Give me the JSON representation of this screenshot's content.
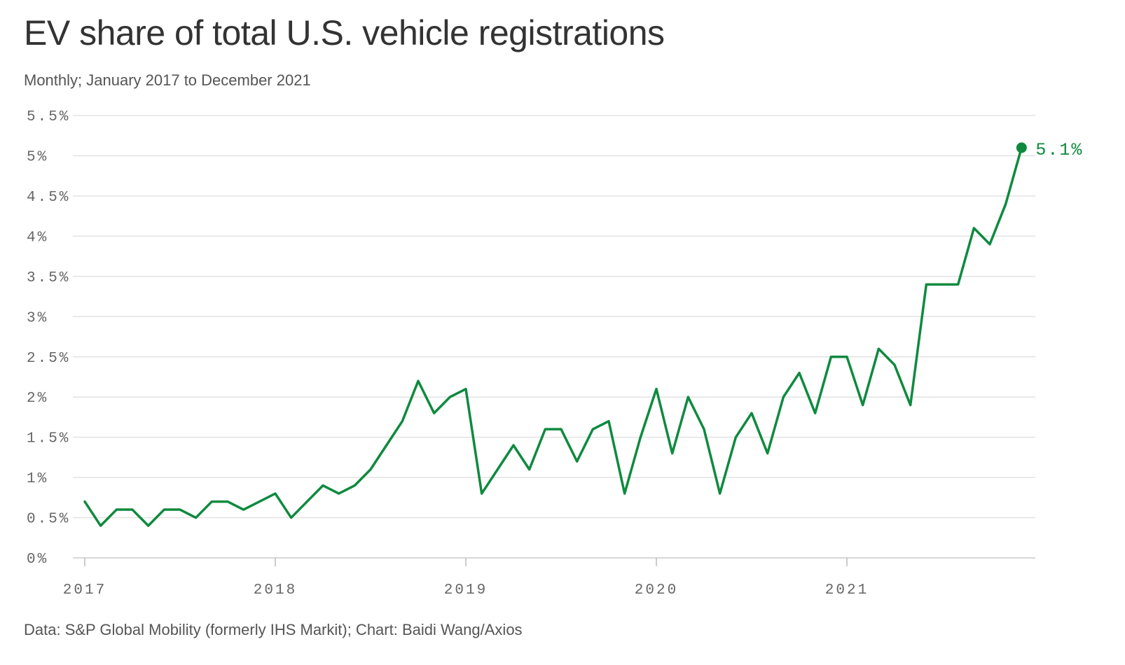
{
  "chart_data": {
    "type": "line",
    "title": "EV share of total U.S. vehicle registrations",
    "subtitle": "Monthly; January 2017 to December 2021",
    "source": "Data: S&P Global Mobility (formerly IHS Markit); Chart: Baidi Wang/Axios",
    "xlabel": "",
    "ylabel": "",
    "ylim": [
      0,
      5.5
    ],
    "y_ticks": [
      0,
      0.5,
      1,
      1.5,
      2,
      2.5,
      3,
      3.5,
      4,
      4.5,
      5,
      5.5
    ],
    "y_tick_labels": [
      "0%",
      "0.5%",
      "1%",
      "1.5%",
      "2%",
      "2.5%",
      "3%",
      "3.5%",
      "4%",
      "4.5%",
      "5%",
      "5.5%"
    ],
    "x_ticks": [
      "2017-01",
      "2018-01",
      "2019-01",
      "2020-01",
      "2021-01"
    ],
    "x_tick_labels": [
      "2017",
      "2018",
      "2019",
      "2020",
      "2021"
    ],
    "grid": true,
    "line_color": "#0e8a3e",
    "end_label": "5.1%",
    "series": [
      {
        "x": [
          "2017-01",
          "2017-02",
          "2017-03",
          "2017-04",
          "2017-05",
          "2017-06",
          "2017-07",
          "2017-08",
          "2017-09",
          "2017-10",
          "2017-11",
          "2017-12",
          "2018-01",
          "2018-02",
          "2018-03",
          "2018-04",
          "2018-05",
          "2018-06",
          "2018-07",
          "2018-08",
          "2018-09",
          "2018-10",
          "2018-11",
          "2018-12",
          "2019-01",
          "2019-02",
          "2019-03",
          "2019-04",
          "2019-05",
          "2019-06",
          "2019-07",
          "2019-08",
          "2019-09",
          "2019-10",
          "2019-11",
          "2019-12",
          "2020-01",
          "2020-02",
          "2020-03",
          "2020-04",
          "2020-05",
          "2020-06",
          "2020-07",
          "2020-08",
          "2020-09",
          "2020-10",
          "2020-11",
          "2020-12",
          "2021-01",
          "2021-02",
          "2021-03",
          "2021-04",
          "2021-05",
          "2021-06",
          "2021-07",
          "2021-08",
          "2021-09",
          "2021-10",
          "2021-11",
          "2021-12"
        ],
        "values": [
          0.7,
          0.4,
          0.6,
          0.6,
          0.4,
          0.6,
          0.6,
          0.5,
          0.7,
          0.7,
          0.6,
          0.7,
          0.8,
          0.5,
          0.7,
          0.9,
          0.8,
          0.9,
          1.1,
          1.4,
          1.7,
          2.2,
          1.8,
          2.0,
          2.1,
          0.8,
          1.1,
          1.4,
          1.1,
          1.6,
          1.6,
          1.2,
          1.6,
          1.7,
          0.8,
          1.5,
          2.1,
          1.3,
          2.0,
          1.6,
          0.8,
          1.5,
          1.8,
          1.3,
          2.0,
          2.3,
          1.8,
          2.5,
          2.5,
          1.9,
          2.6,
          2.4,
          1.9,
          3.4,
          3.4,
          3.4,
          4.1,
          3.9,
          4.4,
          5.1
        ]
      }
    ]
  }
}
